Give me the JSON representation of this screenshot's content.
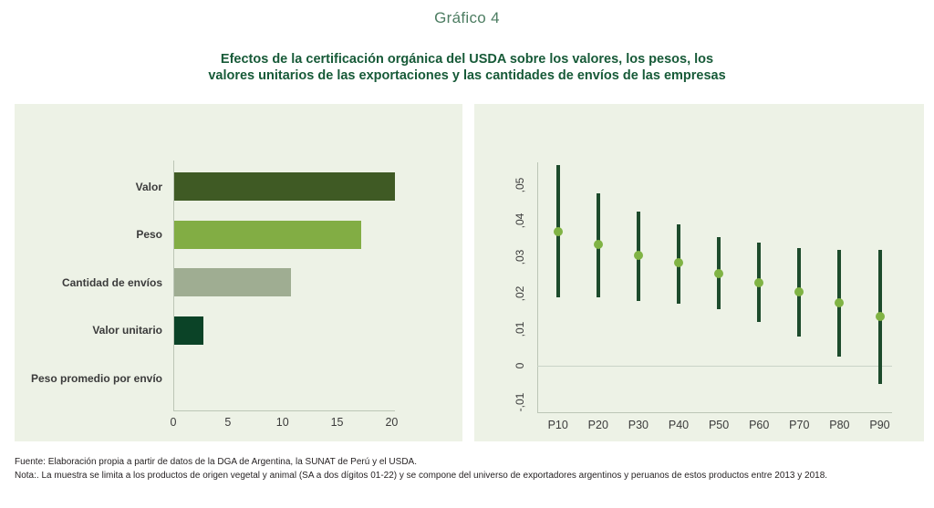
{
  "page": {
    "label": "Gráfico 4",
    "title_line1": "Efectos de la certificación orgánica del USDA sobre los valores, los pesos, los",
    "title_line2": "valores unitarios de las exportaciones y las cantidades de envíos de las empresas",
    "footer_line1": "Fuente: Elaboración propia a partir de datos de la DGA de Argentina, la SUNAT de Perú y el USDA.",
    "footer_line2": "Nota:. La muestra se limita a los productos de origen vegetal y animal (SA a dos dígitos 01-22) y se compone del universo de exportadores argentinos y peruanos de estos productos entre 2013 y 2018."
  },
  "colors": {
    "panel_background": "#edf2e6",
    "label_green": "#4d7d62",
    "title_green": "#175a38",
    "axis_gray_green": "#bcc6b6",
    "zero_line": "#c9d4c7",
    "ci_line_dark_green": "#1d4b2c",
    "marker_light_green": "#80b344",
    "text_dark": "#3b3b3b"
  },
  "chart_data": [
    {
      "type": "bar",
      "orientation": "horizontal",
      "title": "",
      "xlabel": "",
      "ylabel": "",
      "categories": [
        "Valor",
        "Peso",
        "Cantidad de envíos",
        "Valor unitario",
        "Peso promedio por envío"
      ],
      "values": [
        20.2,
        17.1,
        10.7,
        2.7,
        0
      ],
      "bar_colors": [
        "#3f5a24",
        "#82ad44",
        "#9fad92",
        "#0b4327",
        "#9fad92"
      ],
      "xlim": [
        0,
        20.3
      ],
      "xticks": [
        0,
        5,
        10,
        15,
        20
      ],
      "grid": false,
      "legend": false
    },
    {
      "type": "scatter",
      "subtype": "point-estimates-with-confidence-intervals",
      "title": "",
      "xlabel": "",
      "ylabel": "",
      "categories": [
        "P10",
        "P20",
        "P30",
        "P40",
        "P50",
        "P60",
        "P70",
        "P80",
        "P90"
      ],
      "series": [
        {
          "name": "point_estimate",
          "values": [
            0.037,
            0.0335,
            0.0305,
            0.0285,
            0.0255,
            0.023,
            0.0205,
            0.0175,
            0.0135
          ]
        },
        {
          "name": "ci_high",
          "values": [
            0.0555,
            0.0475,
            0.0425,
            0.039,
            0.0355,
            0.034,
            0.0325,
            0.032,
            0.032
          ]
        },
        {
          "name": "ci_low",
          "values": [
            0.019,
            0.019,
            0.018,
            0.017,
            0.0155,
            0.012,
            0.008,
            0.0025,
            -0.005
          ]
        }
      ],
      "ylim": [
        -0.0128,
        0.0562
      ],
      "yticks": [
        -0.01,
        0,
        0.01,
        0.02,
        0.03,
        0.04,
        0.05
      ],
      "ytick_labels": [
        "-,01",
        "0",
        ",01",
        ",02",
        ",03",
        ",04",
        ",05"
      ],
      "ytick_labels_rotated": true,
      "zero_reference_line": true,
      "grid": false,
      "legend": false
    }
  ]
}
